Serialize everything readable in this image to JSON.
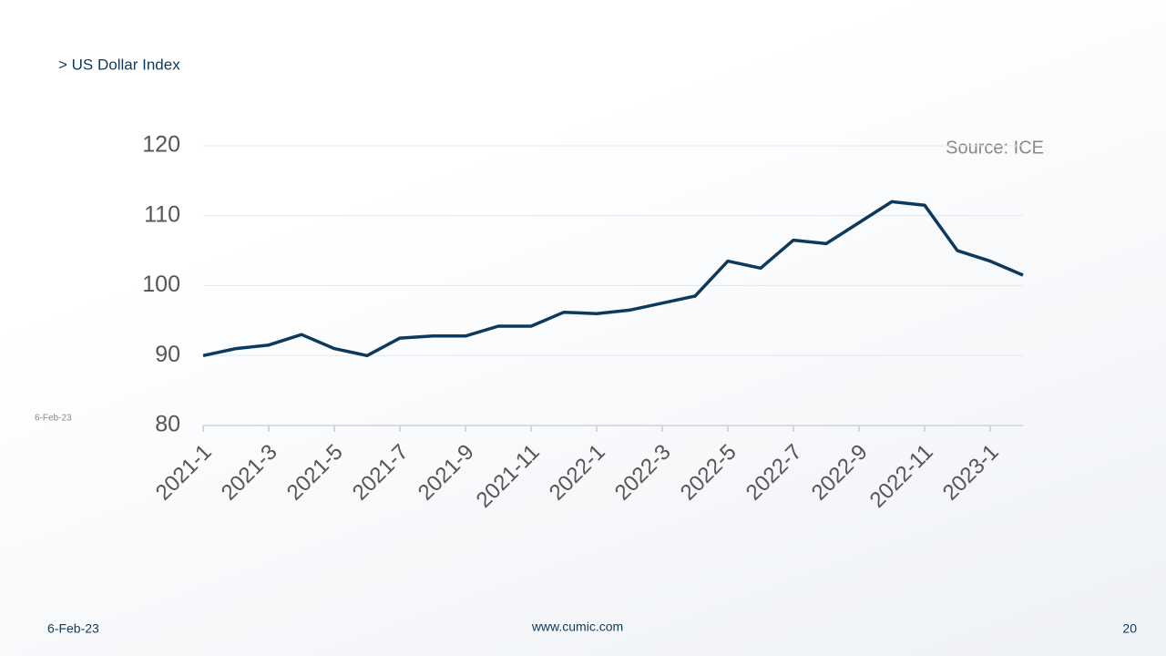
{
  "slide": {
    "heading": "> US Dollar Index",
    "side_date": "6-Feb-23",
    "footer_date": "6-Feb-23",
    "website": "www.cumic.com",
    "page_number": "20"
  },
  "chart_data": {
    "type": "line",
    "annotation": "Source: ICE",
    "x": [
      "2021-1",
      "2021-2",
      "2021-3",
      "2021-4",
      "2021-5",
      "2021-6",
      "2021-7",
      "2021-8",
      "2021-9",
      "2021-10",
      "2021-11",
      "2021-12",
      "2022-1",
      "2022-2",
      "2022-3",
      "2022-4",
      "2022-5",
      "2022-6",
      "2022-7",
      "2022-8",
      "2022-9",
      "2022-10",
      "2022-11",
      "2022-12",
      "2023-1",
      "2023-2"
    ],
    "series": [
      {
        "name": "US Dollar Index",
        "color": "#0d3a5c",
        "values": [
          90,
          91,
          91.5,
          93,
          91,
          90,
          92.5,
          92.8,
          92.8,
          94.2,
          94.2,
          96.2,
          96,
          96.5,
          97.5,
          98.5,
          103.5,
          102.5,
          106.5,
          106,
          109,
          112,
          111.5,
          105,
          103.5,
          101.5
        ]
      }
    ],
    "xticks": [
      "2021-1",
      "2021-3",
      "2021-5",
      "2021-7",
      "2021-9",
      "2021-11",
      "2022-1",
      "2022-3",
      "2022-5",
      "2022-7",
      "2022-9",
      "2022-11",
      "2023-1"
    ],
    "ylim": [
      80,
      120
    ],
    "yticks": [
      80,
      90,
      100,
      110,
      120
    ],
    "grid": true
  }
}
